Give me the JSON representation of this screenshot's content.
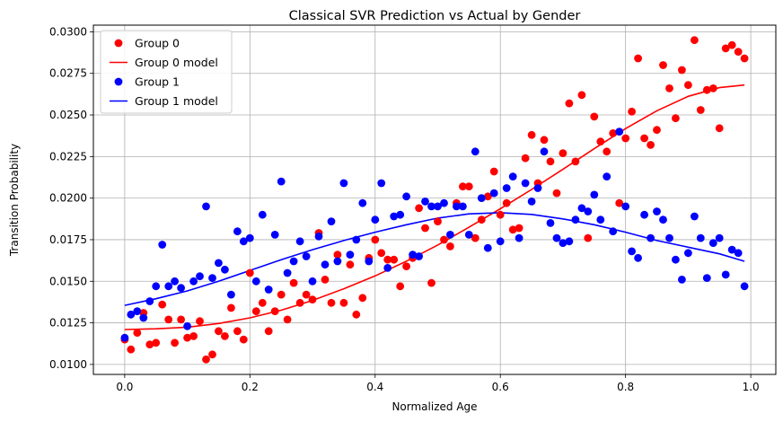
{
  "chart_data": {
    "type": "scatter",
    "title": "Classical SVR Prediction vs Actual by Gender",
    "xlabel": "Normalized Age",
    "ylabel": "Transition Probability",
    "xlim": [
      -0.05,
      1.04
    ],
    "ylim": [
      0.0094,
      0.0304
    ],
    "x_ticks": [
      0.0,
      0.2,
      0.4,
      0.6,
      0.8,
      1.0
    ],
    "x_tick_labels": [
      "0.0",
      "0.2",
      "0.4",
      "0.6",
      "0.8",
      "1.0"
    ],
    "y_ticks": [
      0.01,
      0.0125,
      0.015,
      0.0175,
      0.02,
      0.0225,
      0.025,
      0.0275,
      0.03
    ],
    "y_tick_labels": [
      "0.0100",
      "0.0125",
      "0.0150",
      "0.0175",
      "0.0200",
      "0.0225",
      "0.0250",
      "0.0275",
      "0.0300"
    ],
    "grid": true,
    "legend_position": "top-left",
    "series": [
      {
        "name": "Group 0",
        "kind": "points",
        "color": "#ff0000",
        "points": [
          [
            0.0,
            0.0115
          ],
          [
            0.01,
            0.0109
          ],
          [
            0.02,
            0.0119
          ],
          [
            0.03,
            0.0131
          ],
          [
            0.04,
            0.0112
          ],
          [
            0.05,
            0.0113
          ],
          [
            0.06,
            0.0136
          ],
          [
            0.07,
            0.0127
          ],
          [
            0.08,
            0.0113
          ],
          [
            0.09,
            0.0127
          ],
          [
            0.1,
            0.0116
          ],
          [
            0.11,
            0.0117
          ],
          [
            0.12,
            0.0126
          ],
          [
            0.13,
            0.0103
          ],
          [
            0.14,
            0.0106
          ],
          [
            0.15,
            0.012
          ],
          [
            0.16,
            0.0117
          ],
          [
            0.17,
            0.0134
          ],
          [
            0.18,
            0.012
          ],
          [
            0.19,
            0.0115
          ],
          [
            0.2,
            0.0155
          ],
          [
            0.21,
            0.0132
          ],
          [
            0.22,
            0.0137
          ],
          [
            0.23,
            0.012
          ],
          [
            0.24,
            0.0132
          ],
          [
            0.25,
            0.0142
          ],
          [
            0.26,
            0.0127
          ],
          [
            0.27,
            0.0149
          ],
          [
            0.28,
            0.0137
          ],
          [
            0.29,
            0.0142
          ],
          [
            0.3,
            0.0139
          ],
          [
            0.31,
            0.0179
          ],
          [
            0.32,
            0.0151
          ],
          [
            0.33,
            0.0137
          ],
          [
            0.34,
            0.0166
          ],
          [
            0.35,
            0.0137
          ],
          [
            0.36,
            0.016
          ],
          [
            0.37,
            0.013
          ],
          [
            0.38,
            0.014
          ],
          [
            0.39,
            0.0164
          ],
          [
            0.4,
            0.0175
          ],
          [
            0.41,
            0.0167
          ],
          [
            0.42,
            0.0163
          ],
          [
            0.43,
            0.0163
          ],
          [
            0.44,
            0.0147
          ],
          [
            0.45,
            0.0159
          ],
          [
            0.46,
            0.0164
          ],
          [
            0.47,
            0.0194
          ],
          [
            0.48,
            0.0182
          ],
          [
            0.49,
            0.0149
          ],
          [
            0.5,
            0.0186
          ],
          [
            0.51,
            0.0175
          ],
          [
            0.52,
            0.0171
          ],
          [
            0.53,
            0.0197
          ],
          [
            0.54,
            0.0207
          ],
          [
            0.55,
            0.0207
          ],
          [
            0.56,
            0.0176
          ],
          [
            0.57,
            0.0187
          ],
          [
            0.58,
            0.0201
          ],
          [
            0.59,
            0.0216
          ],
          [
            0.6,
            0.019
          ],
          [
            0.61,
            0.0197
          ],
          [
            0.62,
            0.0181
          ],
          [
            0.63,
            0.0182
          ],
          [
            0.64,
            0.0224
          ],
          [
            0.65,
            0.0238
          ],
          [
            0.66,
            0.0209
          ],
          [
            0.67,
            0.0235
          ],
          [
            0.68,
            0.0222
          ],
          [
            0.69,
            0.0203
          ],
          [
            0.7,
            0.0227
          ],
          [
            0.71,
            0.0257
          ],
          [
            0.72,
            0.0222
          ],
          [
            0.73,
            0.0262
          ],
          [
            0.74,
            0.0176
          ],
          [
            0.75,
            0.0249
          ],
          [
            0.76,
            0.0234
          ],
          [
            0.77,
            0.0228
          ],
          [
            0.78,
            0.0239
          ],
          [
            0.79,
            0.0197
          ],
          [
            0.8,
            0.0236
          ],
          [
            0.81,
            0.0252
          ],
          [
            0.82,
            0.0284
          ],
          [
            0.83,
            0.0236
          ],
          [
            0.84,
            0.0232
          ],
          [
            0.85,
            0.0241
          ],
          [
            0.86,
            0.028
          ],
          [
            0.87,
            0.0266
          ],
          [
            0.88,
            0.0248
          ],
          [
            0.89,
            0.0277
          ],
          [
            0.9,
            0.0268
          ],
          [
            0.91,
            0.0295
          ],
          [
            0.92,
            0.0253
          ],
          [
            0.93,
            0.0265
          ],
          [
            0.94,
            0.0266
          ],
          [
            0.95,
            0.0242
          ],
          [
            0.96,
            0.029
          ],
          [
            0.97,
            0.0292
          ],
          [
            0.98,
            0.0288
          ],
          [
            0.99,
            0.0284
          ]
        ]
      },
      {
        "name": "Group 0 model",
        "kind": "line",
        "color": "#ff0000",
        "points": [
          [
            0.0,
            0.0121
          ],
          [
            0.05,
            0.01214
          ],
          [
            0.1,
            0.01224
          ],
          [
            0.15,
            0.01246
          ],
          [
            0.2,
            0.0128
          ],
          [
            0.25,
            0.01326
          ],
          [
            0.3,
            0.01385
          ],
          [
            0.35,
            0.01455
          ],
          [
            0.4,
            0.01532
          ],
          [
            0.45,
            0.01621
          ],
          [
            0.5,
            0.01718
          ],
          [
            0.55,
            0.01825
          ],
          [
            0.6,
            0.01936
          ],
          [
            0.65,
            0.02052
          ],
          [
            0.7,
            0.02173
          ],
          [
            0.75,
            0.02297
          ],
          [
            0.8,
            0.02418
          ],
          [
            0.85,
            0.02525
          ],
          [
            0.9,
            0.02612
          ],
          [
            0.95,
            0.02664
          ],
          [
            0.99,
            0.0268
          ]
        ]
      },
      {
        "name": "Group 1",
        "kind": "points",
        "color": "#0000ff",
        "points": [
          [
            0.0,
            0.0116
          ],
          [
            0.01,
            0.013
          ],
          [
            0.02,
            0.0132
          ],
          [
            0.03,
            0.0128
          ],
          [
            0.04,
            0.0138
          ],
          [
            0.05,
            0.0147
          ],
          [
            0.06,
            0.0172
          ],
          [
            0.07,
            0.0147
          ],
          [
            0.08,
            0.015
          ],
          [
            0.09,
            0.0146
          ],
          [
            0.1,
            0.0123
          ],
          [
            0.11,
            0.015
          ],
          [
            0.12,
            0.0153
          ],
          [
            0.13,
            0.0195
          ],
          [
            0.14,
            0.0152
          ],
          [
            0.15,
            0.0161
          ],
          [
            0.16,
            0.0157
          ],
          [
            0.17,
            0.0142
          ],
          [
            0.18,
            0.018
          ],
          [
            0.19,
            0.0174
          ],
          [
            0.2,
            0.0176
          ],
          [
            0.21,
            0.015
          ],
          [
            0.22,
            0.019
          ],
          [
            0.23,
            0.0145
          ],
          [
            0.24,
            0.0178
          ],
          [
            0.25,
            0.021
          ],
          [
            0.26,
            0.0155
          ],
          [
            0.27,
            0.0162
          ],
          [
            0.28,
            0.0174
          ],
          [
            0.29,
            0.0165
          ],
          [
            0.3,
            0.015
          ],
          [
            0.31,
            0.0177
          ],
          [
            0.32,
            0.016
          ],
          [
            0.33,
            0.0186
          ],
          [
            0.34,
            0.0162
          ],
          [
            0.35,
            0.0209
          ],
          [
            0.36,
            0.0166
          ],
          [
            0.37,
            0.0175
          ],
          [
            0.38,
            0.0197
          ],
          [
            0.39,
            0.0162
          ],
          [
            0.4,
            0.0187
          ],
          [
            0.41,
            0.0209
          ],
          [
            0.42,
            0.0158
          ],
          [
            0.43,
            0.0189
          ],
          [
            0.44,
            0.019
          ],
          [
            0.45,
            0.0201
          ],
          [
            0.46,
            0.0166
          ],
          [
            0.47,
            0.0165
          ],
          [
            0.48,
            0.0198
          ],
          [
            0.49,
            0.0195
          ],
          [
            0.5,
            0.0195
          ],
          [
            0.51,
            0.0197
          ],
          [
            0.52,
            0.0178
          ],
          [
            0.53,
            0.0195
          ],
          [
            0.54,
            0.0195
          ],
          [
            0.55,
            0.0178
          ],
          [
            0.56,
            0.0228
          ],
          [
            0.57,
            0.02
          ],
          [
            0.58,
            0.017
          ],
          [
            0.59,
            0.0203
          ],
          [
            0.6,
            0.0174
          ],
          [
            0.61,
            0.0206
          ],
          [
            0.62,
            0.0213
          ],
          [
            0.63,
            0.0176
          ],
          [
            0.64,
            0.0209
          ],
          [
            0.65,
            0.0198
          ],
          [
            0.66,
            0.0206
          ],
          [
            0.67,
            0.0228
          ],
          [
            0.68,
            0.0185
          ],
          [
            0.69,
            0.0176
          ],
          [
            0.7,
            0.0173
          ],
          [
            0.71,
            0.0174
          ],
          [
            0.72,
            0.0187
          ],
          [
            0.73,
            0.0194
          ],
          [
            0.74,
            0.0192
          ],
          [
            0.75,
            0.0202
          ],
          [
            0.76,
            0.0187
          ],
          [
            0.77,
            0.0213
          ],
          [
            0.78,
            0.018
          ],
          [
            0.79,
            0.024
          ],
          [
            0.8,
            0.0195
          ],
          [
            0.81,
            0.0168
          ],
          [
            0.82,
            0.0164
          ],
          [
            0.83,
            0.019
          ],
          [
            0.84,
            0.0176
          ],
          [
            0.85,
            0.0192
          ],
          [
            0.86,
            0.0187
          ],
          [
            0.87,
            0.0176
          ],
          [
            0.88,
            0.0163
          ],
          [
            0.89,
            0.0151
          ],
          [
            0.9,
            0.0167
          ],
          [
            0.91,
            0.0189
          ],
          [
            0.92,
            0.0176
          ],
          [
            0.93,
            0.0152
          ],
          [
            0.94,
            0.0173
          ],
          [
            0.95,
            0.0176
          ],
          [
            0.96,
            0.0154
          ],
          [
            0.97,
            0.0169
          ],
          [
            0.98,
            0.0167
          ],
          [
            0.99,
            0.0147
          ]
        ]
      },
      {
        "name": "Group 1 model",
        "kind": "line",
        "color": "#0000ff",
        "points": [
          [
            0.0,
            0.01355
          ],
          [
            0.05,
            0.01395
          ],
          [
            0.1,
            0.01442
          ],
          [
            0.15,
            0.015
          ],
          [
            0.2,
            0.01565
          ],
          [
            0.25,
            0.0163
          ],
          [
            0.3,
            0.0169
          ],
          [
            0.35,
            0.01745
          ],
          [
            0.4,
            0.01795
          ],
          [
            0.45,
            0.0184
          ],
          [
            0.5,
            0.0188
          ],
          [
            0.55,
            0.01905
          ],
          [
            0.6,
            0.01912
          ],
          [
            0.65,
            0.01902
          ],
          [
            0.7,
            0.01875
          ],
          [
            0.75,
            0.0184
          ],
          [
            0.8,
            0.01795
          ],
          [
            0.85,
            0.01745
          ],
          [
            0.9,
            0.01705
          ],
          [
            0.95,
            0.01665
          ],
          [
            0.99,
            0.0162
          ]
        ]
      }
    ]
  }
}
